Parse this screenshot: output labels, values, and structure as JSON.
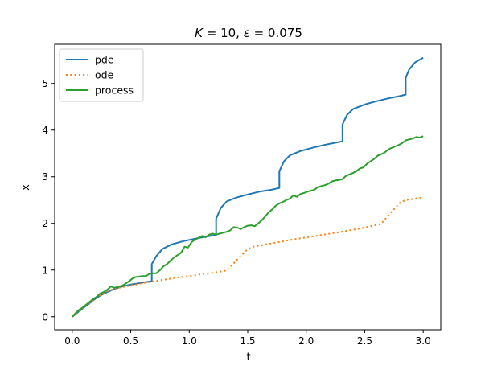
{
  "chart_data": {
    "type": "line",
    "title": "K = 10, ε = 0.075",
    "title_parts": {
      "k_symbol": "K",
      "k_value": " = 10, ",
      "eps_symbol": "ε",
      "eps_value": " = 0.075"
    },
    "xlabel": "t",
    "ylabel": "x",
    "xlim": [
      -0.15,
      3.15
    ],
    "ylim": [
      -0.28,
      5.84
    ],
    "xticks": [
      0.0,
      0.5,
      1.0,
      1.5,
      2.0,
      2.5,
      3.0
    ],
    "xtick_labels": [
      "0.0",
      "0.5",
      "1.0",
      "1.5",
      "2.0",
      "2.5",
      "3.0"
    ],
    "yticks": [
      0,
      1,
      2,
      3,
      4,
      5
    ],
    "ytick_labels": [
      "0",
      "1",
      "2",
      "3",
      "4",
      "5"
    ],
    "grid": false,
    "legend_position": "top-left",
    "series": [
      {
        "name": "pde",
        "color": "#1f77b4",
        "style": "solid",
        "points": [
          [
            0,
            0
          ],
          [
            0.05,
            0.1
          ],
          [
            0.1,
            0.2
          ],
          [
            0.15,
            0.29
          ],
          [
            0.2,
            0.39
          ],
          [
            0.25,
            0.47
          ],
          [
            0.3,
            0.53
          ],
          [
            0.35,
            0.58
          ],
          [
            0.4,
            0.63
          ],
          [
            0.45,
            0.66
          ],
          [
            0.5,
            0.69
          ],
          [
            0.55,
            0.71
          ],
          [
            0.6,
            0.73
          ],
          [
            0.65,
            0.75
          ],
          [
            0.68,
            0.76
          ],
          [
            0.68,
            1.13
          ],
          [
            0.72,
            1.3
          ],
          [
            0.77,
            1.45
          ],
          [
            0.85,
            1.55
          ],
          [
            0.95,
            1.62
          ],
          [
            1.05,
            1.67
          ],
          [
            1.15,
            1.72
          ],
          [
            1.23,
            1.75
          ],
          [
            1.23,
            2.1
          ],
          [
            1.27,
            2.33
          ],
          [
            1.32,
            2.47
          ],
          [
            1.4,
            2.55
          ],
          [
            1.5,
            2.62
          ],
          [
            1.6,
            2.68
          ],
          [
            1.7,
            2.72
          ],
          [
            1.77,
            2.76
          ],
          [
            1.77,
            3.12
          ],
          [
            1.81,
            3.33
          ],
          [
            1.86,
            3.46
          ],
          [
            1.95,
            3.55
          ],
          [
            2.05,
            3.62
          ],
          [
            2.15,
            3.68
          ],
          [
            2.25,
            3.73
          ],
          [
            2.31,
            3.76
          ],
          [
            2.31,
            4.12
          ],
          [
            2.35,
            4.33
          ],
          [
            2.4,
            4.45
          ],
          [
            2.5,
            4.55
          ],
          [
            2.6,
            4.62
          ],
          [
            2.7,
            4.68
          ],
          [
            2.8,
            4.73
          ],
          [
            2.85,
            4.76
          ],
          [
            2.85,
            5.12
          ],
          [
            2.88,
            5.3
          ],
          [
            2.93,
            5.45
          ],
          [
            2.97,
            5.51
          ],
          [
            3.0,
            5.55
          ]
        ]
      },
      {
        "name": "ode",
        "color": "#ff7f0e",
        "style": "dotted",
        "points": [
          [
            0,
            0
          ],
          [
            0.05,
            0.1
          ],
          [
            0.1,
            0.2
          ],
          [
            0.15,
            0.3
          ],
          [
            0.2,
            0.4
          ],
          [
            0.25,
            0.48
          ],
          [
            0.3,
            0.55
          ],
          [
            0.4,
            0.62
          ],
          [
            0.5,
            0.67
          ],
          [
            0.6,
            0.72
          ],
          [
            0.7,
            0.76
          ],
          [
            0.8,
            0.8
          ],
          [
            0.9,
            0.84
          ],
          [
            1.0,
            0.87
          ],
          [
            1.1,
            0.91
          ],
          [
            1.2,
            0.94
          ],
          [
            1.32,
            0.99
          ],
          [
            1.42,
            1.25
          ],
          [
            1.5,
            1.45
          ],
          [
            1.55,
            1.5
          ],
          [
            1.7,
            1.57
          ],
          [
            1.9,
            1.66
          ],
          [
            2.1,
            1.74
          ],
          [
            2.3,
            1.82
          ],
          [
            2.5,
            1.91
          ],
          [
            2.64,
            1.99
          ],
          [
            2.73,
            2.25
          ],
          [
            2.8,
            2.44
          ],
          [
            2.85,
            2.5
          ],
          [
            2.93,
            2.53
          ],
          [
            3.0,
            2.56
          ]
        ]
      },
      {
        "name": "process",
        "color": "#2ca02c",
        "style": "solid",
        "points": [
          [
            0,
            0
          ],
          [
            0.03,
            0.08
          ],
          [
            0.06,
            0.15
          ],
          [
            0.09,
            0.2
          ],
          [
            0.12,
            0.26
          ],
          [
            0.15,
            0.32
          ],
          [
            0.18,
            0.38
          ],
          [
            0.21,
            0.43
          ],
          [
            0.24,
            0.5
          ],
          [
            0.27,
            0.53
          ],
          [
            0.3,
            0.58
          ],
          [
            0.33,
            0.65
          ],
          [
            0.36,
            0.62
          ],
          [
            0.39,
            0.64
          ],
          [
            0.42,
            0.66
          ],
          [
            0.45,
            0.7
          ],
          [
            0.48,
            0.75
          ],
          [
            0.51,
            0.81
          ],
          [
            0.54,
            0.85
          ],
          [
            0.57,
            0.86
          ],
          [
            0.6,
            0.87
          ],
          [
            0.63,
            0.87
          ],
          [
            0.66,
            0.92
          ],
          [
            0.69,
            0.93
          ],
          [
            0.72,
            0.93
          ],
          [
            0.75,
            1.0
          ],
          [
            0.78,
            1.08
          ],
          [
            0.81,
            1.13
          ],
          [
            0.84,
            1.2
          ],
          [
            0.87,
            1.27
          ],
          [
            0.9,
            1.32
          ],
          [
            0.93,
            1.37
          ],
          [
            0.96,
            1.5
          ],
          [
            0.99,
            1.48
          ],
          [
            1.02,
            1.6
          ],
          [
            1.05,
            1.65
          ],
          [
            1.08,
            1.69
          ],
          [
            1.11,
            1.73
          ],
          [
            1.14,
            1.7
          ],
          [
            1.17,
            1.76
          ],
          [
            1.2,
            1.78
          ],
          [
            1.23,
            1.76
          ],
          [
            1.26,
            1.78
          ],
          [
            1.29,
            1.8
          ],
          [
            1.32,
            1.82
          ],
          [
            1.35,
            1.85
          ],
          [
            1.38,
            1.92
          ],
          [
            1.41,
            1.91
          ],
          [
            1.44,
            1.88
          ],
          [
            1.47,
            1.92
          ],
          [
            1.5,
            1.95
          ],
          [
            1.53,
            1.96
          ],
          [
            1.56,
            1.94
          ],
          [
            1.59,
            2.0
          ],
          [
            1.62,
            2.07
          ],
          [
            1.65,
            2.15
          ],
          [
            1.68,
            2.24
          ],
          [
            1.71,
            2.3
          ],
          [
            1.74,
            2.38
          ],
          [
            1.77,
            2.43
          ],
          [
            1.8,
            2.46
          ],
          [
            1.83,
            2.5
          ],
          [
            1.86,
            2.53
          ],
          [
            1.89,
            2.6
          ],
          [
            1.92,
            2.57
          ],
          [
            1.95,
            2.63
          ],
          [
            1.98,
            2.65
          ],
          [
            2.01,
            2.68
          ],
          [
            2.04,
            2.7
          ],
          [
            2.07,
            2.72
          ],
          [
            2.1,
            2.78
          ],
          [
            2.13,
            2.8
          ],
          [
            2.16,
            2.82
          ],
          [
            2.19,
            2.85
          ],
          [
            2.22,
            2.9
          ],
          [
            2.25,
            2.92
          ],
          [
            2.28,
            2.93
          ],
          [
            2.31,
            2.95
          ],
          [
            2.34,
            3.02
          ],
          [
            2.37,
            3.05
          ],
          [
            2.4,
            3.08
          ],
          [
            2.43,
            3.12
          ],
          [
            2.46,
            3.18
          ],
          [
            2.49,
            3.2
          ],
          [
            2.52,
            3.28
          ],
          [
            2.55,
            3.33
          ],
          [
            2.58,
            3.38
          ],
          [
            2.61,
            3.45
          ],
          [
            2.64,
            3.48
          ],
          [
            2.67,
            3.52
          ],
          [
            2.7,
            3.58
          ],
          [
            2.73,
            3.62
          ],
          [
            2.76,
            3.65
          ],
          [
            2.79,
            3.68
          ],
          [
            2.82,
            3.72
          ],
          [
            2.85,
            3.78
          ],
          [
            2.88,
            3.8
          ],
          [
            2.91,
            3.82
          ],
          [
            2.94,
            3.85
          ],
          [
            2.97,
            3.84
          ],
          [
            3.0,
            3.87
          ]
        ]
      }
    ]
  }
}
